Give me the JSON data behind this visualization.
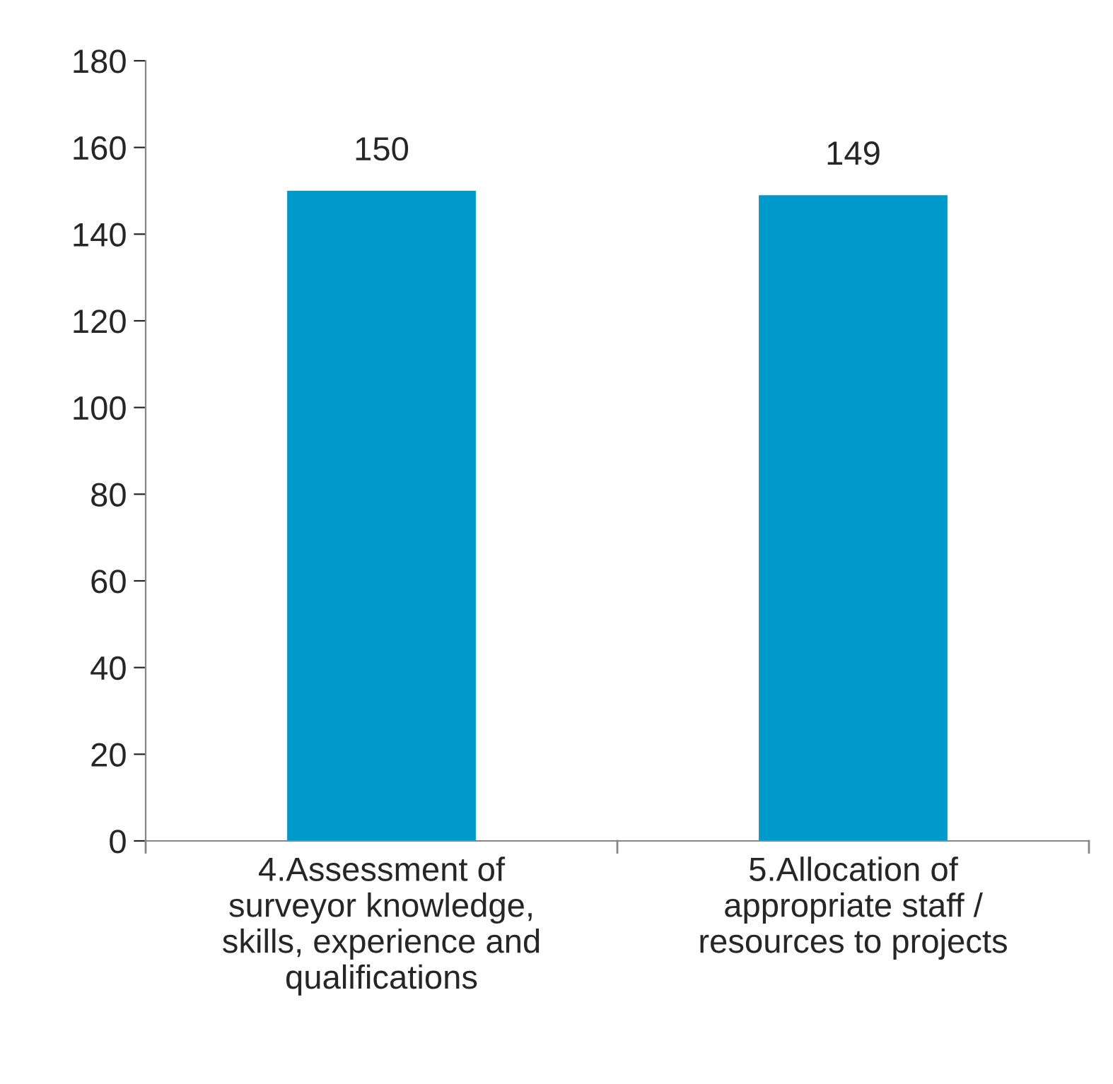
{
  "chart_data": {
    "type": "bar",
    "categories": [
      "4.Assessment of\nsurveyor knowledge,\nskills, experience and\nqualifications",
      "5.Allocation of\nappropriate staff /\nresources to projects"
    ],
    "values": [
      150,
      149
    ],
    "color": "#0099cc",
    "ylim": [
      0,
      180
    ],
    "yticks": [
      0,
      20,
      40,
      60,
      80,
      100,
      120,
      140,
      160,
      180
    ],
    "data_labels": true,
    "grid": false,
    "legend": false
  }
}
